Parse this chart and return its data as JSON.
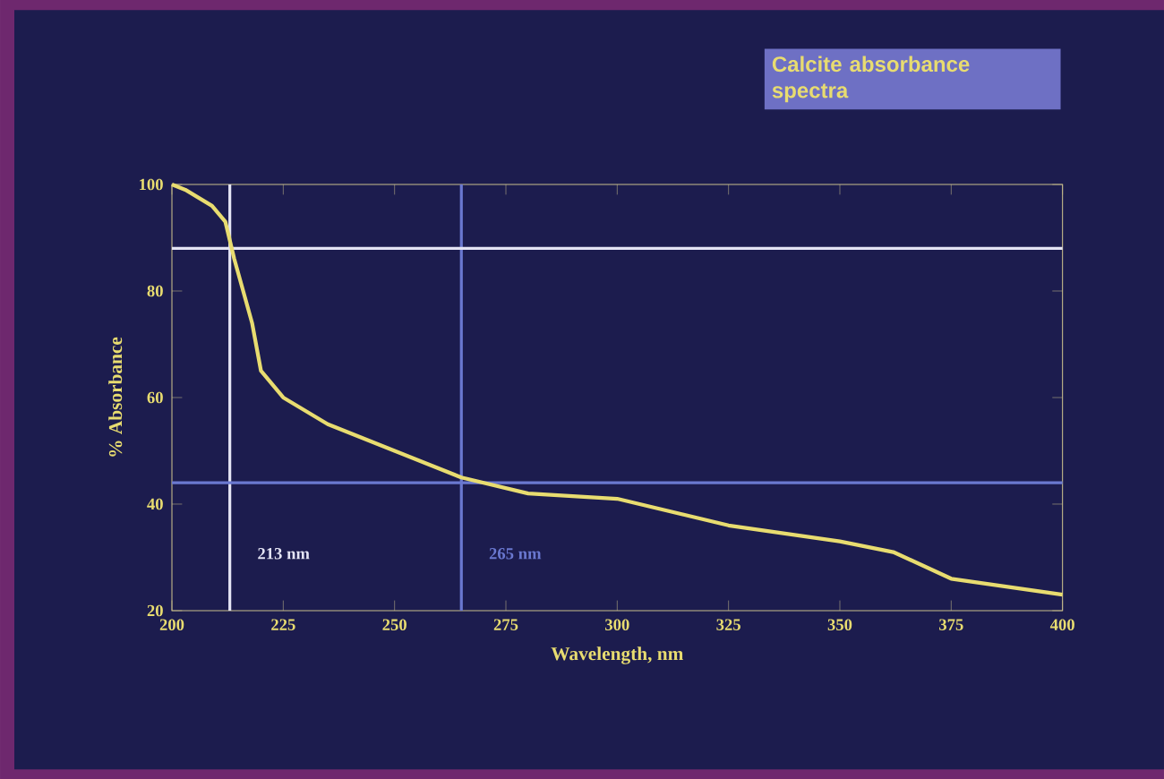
{
  "chart_data": {
    "type": "line",
    "title": "Calcite absorbance spectra",
    "xlabel": "Wavelength, nm",
    "ylabel": "% Absorbance",
    "x": [
      200,
      203,
      209,
      212,
      214,
      216,
      218,
      220,
      225,
      235,
      250,
      265,
      280,
      300,
      325,
      350,
      362,
      375,
      400
    ],
    "series": [
      {
        "color": "#e8dc70",
        "values": [
          100,
          99,
          96,
          93,
          86,
          80,
          74,
          65,
          60,
          55,
          50,
          45,
          42,
          41,
          36,
          33,
          31,
          26,
          23
        ]
      }
    ],
    "xlim": [
      200,
      400
    ],
    "ylim": [
      20,
      100
    ],
    "xticks": [
      200,
      225,
      250,
      275,
      300,
      325,
      350,
      375,
      400
    ],
    "yticks": [
      20,
      40,
      60,
      80,
      100
    ],
    "ref_lines": [
      {
        "axis": "x",
        "value": 213,
        "label": "213 nm",
        "color": "#e4e4f4"
      },
      {
        "axis": "x",
        "value": 265,
        "label": "265 nm",
        "color": "#6a78d0"
      },
      {
        "axis": "y",
        "value": 88,
        "color": "#e4e4f4"
      },
      {
        "axis": "y",
        "value": 44,
        "color": "#6a78d0"
      }
    ],
    "marker": "none",
    "line_style": "solid"
  }
}
